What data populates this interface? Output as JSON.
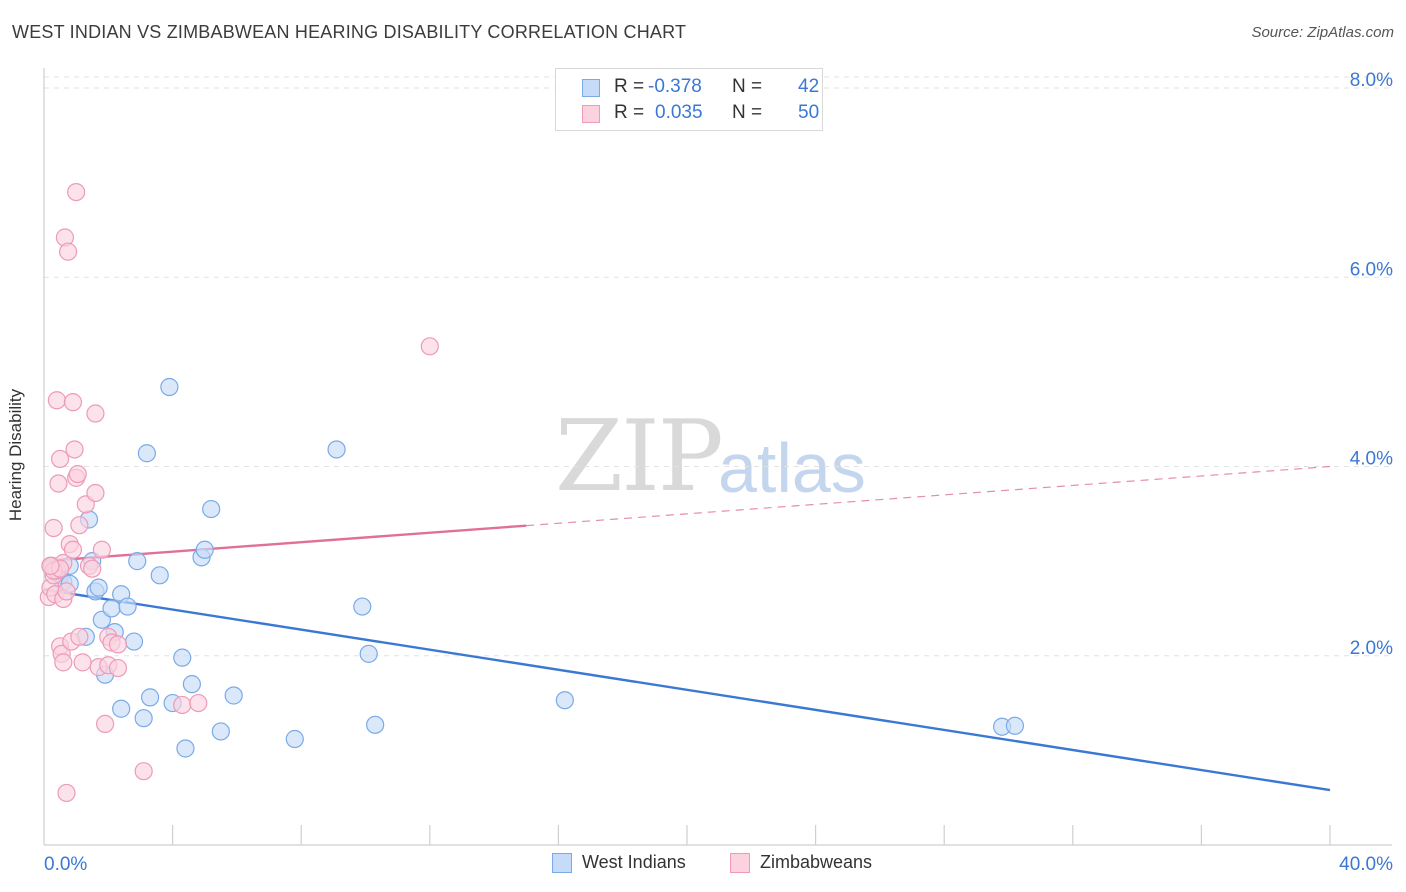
{
  "title": "WEST INDIAN VS ZIMBABWEAN HEARING DISABILITY CORRELATION CHART",
  "source": "Source: ZipAtlas.com",
  "watermark": {
    "zip": "ZIP",
    "atlas": "atlas"
  },
  "stats": [
    {
      "r_label": "R =",
      "r_value": "-0.378",
      "n_label": "N =",
      "n_value": "42",
      "color": "#7aaae8",
      "fill": "#c6dbf7"
    },
    {
      "r_label": "R =",
      "r_value": "0.035",
      "n_label": "N =",
      "n_value": "50",
      "color": "#ee9ab8",
      "fill": "#fbd2de"
    }
  ],
  "legend": [
    {
      "label": "West Indians",
      "color": "#7aaae8",
      "fill": "#c6dbf7"
    },
    {
      "label": "Zimbabweans",
      "color": "#ee9ab8",
      "fill": "#fbd2de"
    }
  ],
  "chart_data": {
    "type": "scatter",
    "title": "WEST INDIAN VS ZIMBABWEAN HEARING DISABILITY CORRELATION CHART",
    "xlabel": "",
    "ylabel": "Hearing Disability",
    "xlim": [
      0,
      40
    ],
    "ylim": [
      0,
      8
    ],
    "x_tick_labels": [
      "0.0%",
      "40.0%"
    ],
    "y_ticks": [
      2,
      4,
      6,
      8
    ],
    "y_tick_labels": [
      "2.0%",
      "4.0%",
      "6.0%",
      "8.0%"
    ],
    "grid": true,
    "series": [
      {
        "name": "West Indians",
        "color": "#3b78d4",
        "point_fill": "#c6dbf7",
        "point_stroke": "#7aaae8",
        "trend": {
          "x0": 0,
          "y0": 2.7,
          "x1": 40,
          "y1": 0.58,
          "solid_to": 40
        },
        "points": [
          [
            0.2,
            2.95
          ],
          [
            0.4,
            2.92
          ],
          [
            0.5,
            2.85
          ],
          [
            0.6,
            2.78
          ],
          [
            0.8,
            2.76
          ],
          [
            0.8,
            2.95
          ],
          [
            1.3,
            2.2
          ],
          [
            1.4,
            3.44
          ],
          [
            1.5,
            3.0
          ],
          [
            1.6,
            2.68
          ],
          [
            1.7,
            2.72
          ],
          [
            1.8,
            2.38
          ],
          [
            1.9,
            1.8
          ],
          [
            2.1,
            2.5
          ],
          [
            2.2,
            2.25
          ],
          [
            2.4,
            2.65
          ],
          [
            2.4,
            1.44
          ],
          [
            2.6,
            2.52
          ],
          [
            2.8,
            2.15
          ],
          [
            2.9,
            3.0
          ],
          [
            3.1,
            1.34
          ],
          [
            3.2,
            4.14
          ],
          [
            3.3,
            1.56
          ],
          [
            3.6,
            2.85
          ],
          [
            3.9,
            4.84
          ],
          [
            4.0,
            1.5
          ],
          [
            4.3,
            1.98
          ],
          [
            4.4,
            1.02
          ],
          [
            4.6,
            1.7
          ],
          [
            4.9,
            3.04
          ],
          [
            5.0,
            3.12
          ],
          [
            5.2,
            3.55
          ],
          [
            5.5,
            1.2
          ],
          [
            5.9,
            1.58
          ],
          [
            7.8,
            1.12
          ],
          [
            9.1,
            4.18
          ],
          [
            9.9,
            2.52
          ],
          [
            10.1,
            2.02
          ],
          [
            10.3,
            1.27
          ],
          [
            16.2,
            1.53
          ],
          [
            29.8,
            1.25
          ],
          [
            30.2,
            1.26
          ]
        ]
      },
      {
        "name": "Zimbabweans",
        "color": "#e0709a",
        "point_fill": "#fbd2de",
        "point_stroke": "#ee9ab8",
        "trend": {
          "x0": 0,
          "y0": 3.0,
          "x1": 40,
          "y1": 4.0,
          "solid_to": 15
        },
        "points": [
          [
            0.15,
            2.62
          ],
          [
            0.2,
            2.72
          ],
          [
            0.25,
            2.95
          ],
          [
            0.3,
            2.85
          ],
          [
            0.3,
            3.35
          ],
          [
            0.35,
            2.65
          ],
          [
            0.4,
            2.9
          ],
          [
            0.4,
            4.7
          ],
          [
            0.45,
            3.82
          ],
          [
            0.5,
            4.08
          ],
          [
            0.5,
            2.1
          ],
          [
            0.55,
            2.02
          ],
          [
            0.6,
            1.93
          ],
          [
            0.6,
            2.98
          ],
          [
            0.6,
            2.6
          ],
          [
            0.65,
            6.42
          ],
          [
            0.7,
            0.55
          ],
          [
            0.7,
            2.68
          ],
          [
            0.75,
            6.27
          ],
          [
            0.8,
            3.18
          ],
          [
            0.85,
            2.15
          ],
          [
            0.9,
            3.12
          ],
          [
            0.9,
            4.68
          ],
          [
            0.95,
            4.18
          ],
          [
            1.0,
            3.88
          ],
          [
            1.0,
            6.9
          ],
          [
            1.05,
            3.92
          ],
          [
            1.1,
            3.38
          ],
          [
            1.1,
            2.2
          ],
          [
            1.2,
            1.93
          ],
          [
            1.3,
            3.6
          ],
          [
            1.4,
            2.95
          ],
          [
            1.5,
            2.92
          ],
          [
            1.6,
            4.56
          ],
          [
            1.6,
            3.72
          ],
          [
            1.7,
            1.88
          ],
          [
            1.8,
            3.12
          ],
          [
            1.9,
            1.28
          ],
          [
            2.0,
            1.9
          ],
          [
            2.0,
            2.2
          ],
          [
            2.1,
            2.14
          ],
          [
            2.3,
            2.12
          ],
          [
            2.3,
            1.87
          ],
          [
            3.1,
            0.78
          ],
          [
            4.3,
            1.48
          ],
          [
            4.8,
            1.5
          ],
          [
            12.0,
            5.27
          ],
          [
            0.3,
            2.9
          ],
          [
            0.5,
            2.92
          ],
          [
            0.2,
            2.95
          ]
        ]
      }
    ]
  }
}
